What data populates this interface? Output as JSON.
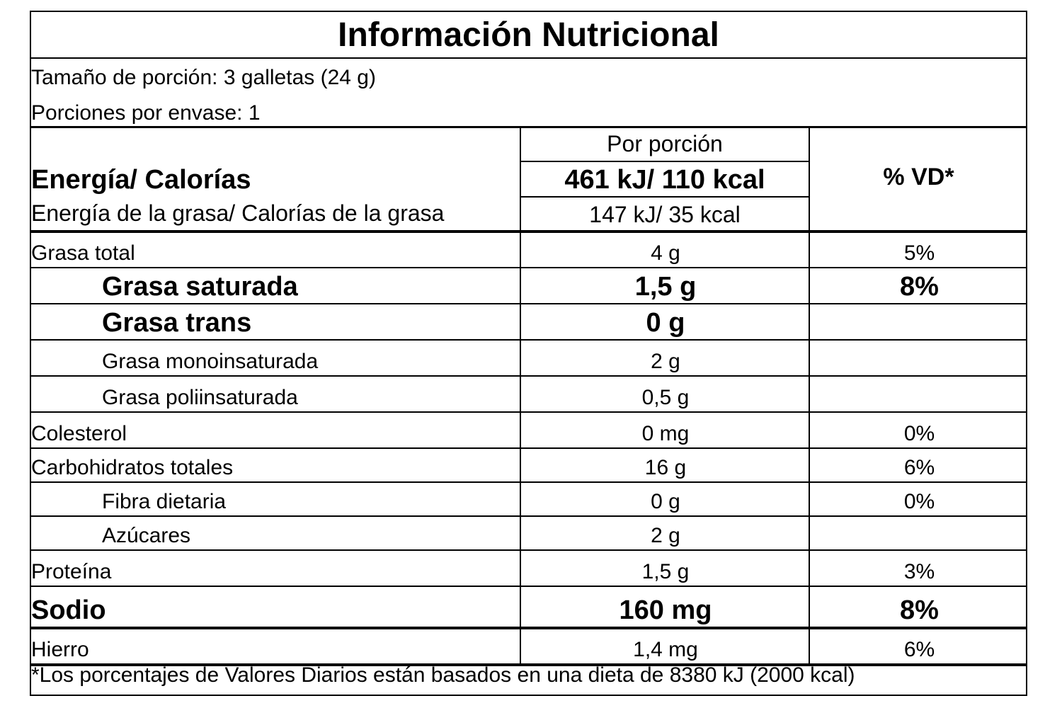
{
  "label": {
    "title": "Información Nutricional",
    "serving_size": "Tamaño de porción: 3 galletas (24 g)",
    "servings_per_container": "Porciones por envase: 1",
    "energy": {
      "per_serving_header": "Por porción",
      "energy_label": "Energía/ Calorías",
      "energy_value": "461 kJ/ 110 kcal",
      "fat_energy_label": "Energía de la grasa/ Calorías de la grasa",
      "fat_energy_value": "147 kJ/ 35 kcal",
      "dv_header": "% VD*"
    },
    "rows": [
      {
        "name": "Grasa total",
        "amount": "4 g",
        "dv": "5%"
      },
      {
        "name": "Grasa saturada",
        "amount": "1,5 g",
        "dv": "8%"
      },
      {
        "name": "Grasa trans",
        "amount": "0 g",
        "dv": ""
      },
      {
        "name": "Grasa monoinsaturada",
        "amount": "2 g",
        "dv": ""
      },
      {
        "name": "Grasa poliinsaturada",
        "amount": "0,5 g",
        "dv": ""
      },
      {
        "name": "Colesterol",
        "amount": "0 mg",
        "dv": "0%"
      },
      {
        "name": "Carbohidratos totales",
        "amount": "16 g",
        "dv": "6%"
      },
      {
        "name": "Fibra dietaria",
        "amount": "0 g",
        "dv": "0%"
      },
      {
        "name": "Azúcares",
        "amount": "2 g",
        "dv": ""
      },
      {
        "name": "Proteína",
        "amount": "1,5 g",
        "dv": "3%"
      },
      {
        "name": "Sodio",
        "amount": "160 mg",
        "dv": "8%"
      },
      {
        "name": "Hierro",
        "amount": "1,4 mg",
        "dv": "6%"
      }
    ],
    "footnote": "*Los porcentajes de Valores Diarios están basados en una dieta de 8380 kJ (2000 kcal)"
  }
}
